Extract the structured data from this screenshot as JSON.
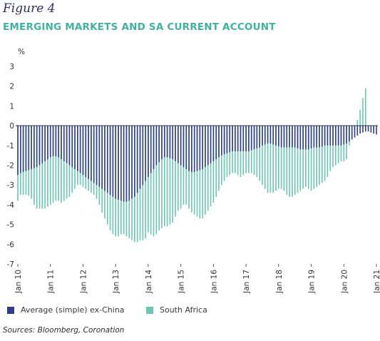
{
  "figure_label": "Figure 4",
  "title": "EMERGING MARKETS AND SA CURRENT ACCOUNT",
  "source": "Sources: Bloomberg, Coronation",
  "chart_data": {
    "type": "bar",
    "ylabel": "%",
    "ylim": [
      -7,
      3
    ],
    "yticks": [
      3,
      2,
      1,
      0,
      -1,
      -2,
      -3,
      -4,
      -5,
      -6,
      -7
    ],
    "xticks": [
      "Jan 10",
      "Jan 11",
      "Jan 12",
      "Jan 13",
      "Jan 14",
      "Jan 15",
      "Jan 16",
      "Jan 17",
      "Jan 18",
      "Jan 19",
      "Jan 20",
      "Jan 21"
    ],
    "grid": false,
    "legend_position": "bottom",
    "colors": {
      "em": "#2f3c8f",
      "sa": "#6bc5b3"
    },
    "x_start": "2010-01",
    "x_frequency": "monthly",
    "series": [
      {
        "name": "Average (simple) ex-China",
        "values": [
          -2.5,
          -2.4,
          -2.35,
          -2.3,
          -2.25,
          -2.2,
          -2.15,
          -2.1,
          -2.0,
          -1.9,
          -1.8,
          -1.7,
          -1.6,
          -1.55,
          -1.55,
          -1.6,
          -1.7,
          -1.8,
          -1.9,
          -2.0,
          -2.1,
          -2.2,
          -2.3,
          -2.4,
          -2.5,
          -2.6,
          -2.7,
          -2.8,
          -2.9,
          -3.0,
          -3.1,
          -3.2,
          -3.3,
          -3.4,
          -3.5,
          -3.6,
          -3.7,
          -3.75,
          -3.8,
          -3.85,
          -3.85,
          -3.8,
          -3.7,
          -3.6,
          -3.4,
          -3.2,
          -3.0,
          -2.8,
          -2.6,
          -2.4,
          -2.2,
          -2.0,
          -1.85,
          -1.7,
          -1.6,
          -1.6,
          -1.65,
          -1.7,
          -1.8,
          -1.9,
          -2.0,
          -2.1,
          -2.2,
          -2.3,
          -2.35,
          -2.35,
          -2.3,
          -2.25,
          -2.2,
          -2.1,
          -2.0,
          -1.9,
          -1.8,
          -1.7,
          -1.6,
          -1.5,
          -1.45,
          -1.4,
          -1.35,
          -1.3,
          -1.3,
          -1.3,
          -1.3,
          -1.3,
          -1.3,
          -1.3,
          -1.25,
          -1.2,
          -1.15,
          -1.1,
          -1.0,
          -0.95,
          -0.9,
          -0.9,
          -0.95,
          -1.0,
          -1.05,
          -1.1,
          -1.1,
          -1.1,
          -1.1,
          -1.1,
          -1.1,
          -1.15,
          -1.2,
          -1.2,
          -1.2,
          -1.2,
          -1.15,
          -1.1,
          -1.1,
          -1.1,
          -1.05,
          -1.0,
          -1.0,
          -1.0,
          -1.0,
          -1.0,
          -1.0,
          -1.0,
          -0.95,
          -0.9,
          -0.8,
          -0.7,
          -0.6,
          -0.5,
          -0.4,
          -0.35,
          -0.3,
          -0.3,
          -0.35,
          -0.4,
          -0.45
        ]
      },
      {
        "name": "South Africa",
        "values": [
          -3.8,
          -3.5,
          -3.5,
          -3.5,
          -3.55,
          -3.7,
          -4.0,
          -4.2,
          -4.2,
          -4.2,
          -4.2,
          -4.1,
          -4.0,
          -3.9,
          -3.8,
          -3.8,
          -3.9,
          -3.8,
          -3.7,
          -3.6,
          -3.4,
          -3.2,
          -3.0,
          -3.0,
          -3.1,
          -3.2,
          -3.3,
          -3.4,
          -3.5,
          -3.7,
          -4.0,
          -4.4,
          -4.7,
          -5.0,
          -5.3,
          -5.5,
          -5.6,
          -5.6,
          -5.5,
          -5.5,
          -5.6,
          -5.7,
          -5.8,
          -5.9,
          -5.9,
          -5.8,
          -5.8,
          -5.7,
          -5.4,
          -5.5,
          -5.6,
          -5.5,
          -5.3,
          -5.2,
          -5.1,
          -5.1,
          -5.0,
          -4.9,
          -4.6,
          -4.3,
          -4.2,
          -4.0,
          -4.0,
          -4.2,
          -4.4,
          -4.5,
          -4.6,
          -4.7,
          -4.7,
          -4.5,
          -4.3,
          -4.1,
          -3.9,
          -3.6,
          -3.3,
          -3.0,
          -2.8,
          -2.6,
          -2.5,
          -2.4,
          -2.4,
          -2.5,
          -2.6,
          -2.5,
          -2.4,
          -2.4,
          -2.4,
          -2.5,
          -2.6,
          -2.8,
          -3.0,
          -3.2,
          -3.4,
          -3.4,
          -3.4,
          -3.3,
          -3.2,
          -3.2,
          -3.3,
          -3.5,
          -3.6,
          -3.6,
          -3.5,
          -3.4,
          -3.3,
          -3.2,
          -3.1,
          -3.2,
          -3.3,
          -3.2,
          -3.1,
          -3.0,
          -2.9,
          -2.8,
          -2.6,
          -2.3,
          -2.1,
          -2.0,
          -1.9,
          -1.8,
          -1.8,
          -1.7,
          -1.0,
          -0.5,
          -0.2,
          0.3,
          0.8,
          1.4,
          1.9
        ]
      }
    ]
  },
  "legend": [
    {
      "label": "Average (simple) ex-China",
      "color": "#2f3c8f"
    },
    {
      "label": "South Africa",
      "color": "#6bc5b3"
    }
  ]
}
